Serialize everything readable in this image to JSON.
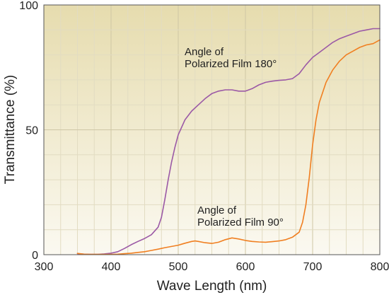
{
  "chart_data": {
    "type": "line",
    "title": "",
    "xlabel": "Wave Length (nm)",
    "ylabel": "Transmittance (%)",
    "xlim": [
      300,
      800
    ],
    "ylim": [
      0,
      100
    ],
    "x_ticks": [
      300,
      400,
      500,
      600,
      700,
      800
    ],
    "y_ticks": [
      0,
      50,
      100
    ],
    "grid": true,
    "grid_minor_x_step": 25,
    "grid_minor_y_step": 10,
    "series": [
      {
        "name": "Angle of Polarized Film 180°",
        "label_lines": [
          "Angle of",
          "Polarized Film 180°"
        ],
        "color": "#9b59a6",
        "points": [
          [
            350,
            0.4
          ],
          [
            360,
            0.2
          ],
          [
            370,
            0.1
          ],
          [
            380,
            0.1
          ],
          [
            390,
            0.3
          ],
          [
            400,
            0.6
          ],
          [
            410,
            1.2
          ],
          [
            420,
            2.5
          ],
          [
            430,
            4.0
          ],
          [
            440,
            5.3
          ],
          [
            450,
            6.5
          ],
          [
            460,
            8.0
          ],
          [
            470,
            11.0
          ],
          [
            475,
            15.0
          ],
          [
            480,
            22.0
          ],
          [
            485,
            30.0
          ],
          [
            490,
            37.0
          ],
          [
            495,
            43.0
          ],
          [
            500,
            48.0
          ],
          [
            510,
            54.0
          ],
          [
            520,
            57.5
          ],
          [
            530,
            60.0
          ],
          [
            540,
            62.5
          ],
          [
            550,
            64.5
          ],
          [
            560,
            65.5
          ],
          [
            570,
            66.0
          ],
          [
            580,
            66.0
          ],
          [
            590,
            65.5
          ],
          [
            600,
            65.5
          ],
          [
            610,
            66.5
          ],
          [
            620,
            68.0
          ],
          [
            630,
            69.0
          ],
          [
            640,
            69.5
          ],
          [
            650,
            69.8
          ],
          [
            660,
            70.0
          ],
          [
            670,
            70.5
          ],
          [
            680,
            72.5
          ],
          [
            690,
            76.0
          ],
          [
            700,
            79.0
          ],
          [
            710,
            81.0
          ],
          [
            720,
            83.0
          ],
          [
            730,
            85.0
          ],
          [
            740,
            86.5
          ],
          [
            750,
            87.5
          ],
          [
            760,
            88.5
          ],
          [
            770,
            89.5
          ],
          [
            780,
            90.0
          ],
          [
            790,
            90.5
          ],
          [
            800,
            90.5
          ]
        ]
      },
      {
        "name": "Angle of Polarized Film 90°",
        "label_lines": [
          "Angle of",
          "Polarized Film 90°"
        ],
        "color": "#f07f21",
        "points": [
          [
            350,
            0.5
          ],
          [
            360,
            0.2
          ],
          [
            370,
            0.1
          ],
          [
            380,
            0.1
          ],
          [
            390,
            0.1
          ],
          [
            400,
            0.1
          ],
          [
            410,
            0.2
          ],
          [
            420,
            0.4
          ],
          [
            430,
            0.6
          ],
          [
            440,
            0.9
          ],
          [
            450,
            1.2
          ],
          [
            460,
            1.7
          ],
          [
            470,
            2.2
          ],
          [
            480,
            2.8
          ],
          [
            490,
            3.3
          ],
          [
            500,
            3.8
          ],
          [
            510,
            4.6
          ],
          [
            520,
            5.3
          ],
          [
            525,
            5.5
          ],
          [
            530,
            5.3
          ],
          [
            540,
            4.8
          ],
          [
            550,
            4.5
          ],
          [
            560,
            5.0
          ],
          [
            570,
            6.0
          ],
          [
            580,
            6.7
          ],
          [
            590,
            6.3
          ],
          [
            600,
            5.7
          ],
          [
            610,
            5.3
          ],
          [
            620,
            5.1
          ],
          [
            630,
            5.0
          ],
          [
            640,
            5.2
          ],
          [
            650,
            5.5
          ],
          [
            660,
            6.0
          ],
          [
            670,
            7.0
          ],
          [
            680,
            9.0
          ],
          [
            685,
            13.0
          ],
          [
            690,
            20.0
          ],
          [
            695,
            31.0
          ],
          [
            700,
            44.0
          ],
          [
            705,
            54.0
          ],
          [
            710,
            61.0
          ],
          [
            720,
            69.0
          ],
          [
            730,
            74.0
          ],
          [
            740,
            77.5
          ],
          [
            750,
            80.0
          ],
          [
            760,
            81.5
          ],
          [
            770,
            83.0
          ],
          [
            780,
            84.0
          ],
          [
            790,
            84.5
          ],
          [
            800,
            86.0
          ]
        ]
      }
    ]
  }
}
